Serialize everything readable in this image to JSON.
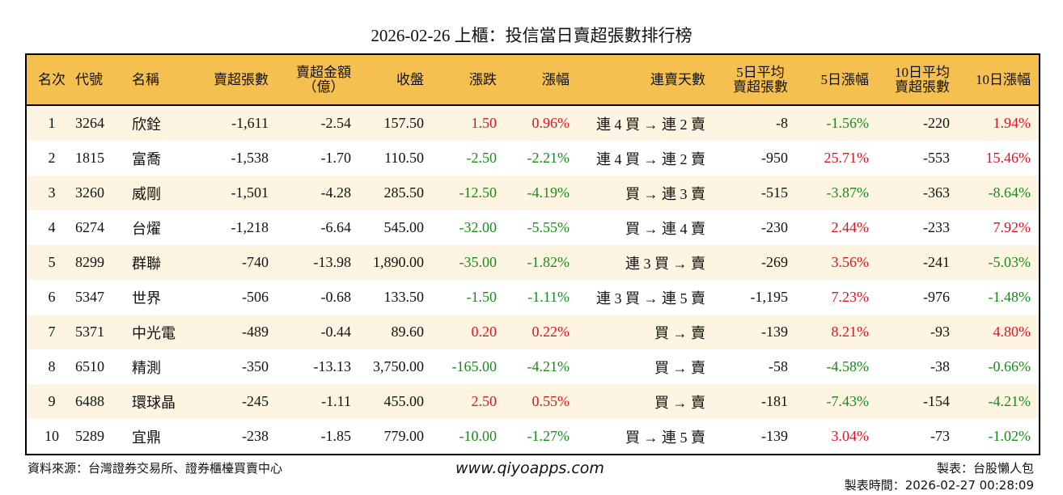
{
  "title": "2026-02-26 上櫃：投信當日賣超張數排行榜",
  "headers": [
    "名次",
    "代號",
    "名稱",
    "賣超張數",
    "賣超金額\n（億）",
    "收盤",
    "漲跌",
    "漲幅",
    "連賣天數",
    "5日平均\n賣超張數",
    "5日漲幅",
    "10日平均\n賣超張數",
    "10日漲幅"
  ],
  "colors": {
    "header_bg": "#f6c050",
    "up": "#e0141e",
    "down": "#1a8a1a",
    "odd_row": "#fdf5e1"
  },
  "rows": [
    [
      "1",
      "3264",
      "欣銓",
      "-1,611",
      "-2.54",
      "157.50",
      "1.50",
      "0.96%",
      "連 4 買 → 連 2 賣",
      "-8",
      "-1.56%",
      "-220",
      "1.94%"
    ],
    [
      "2",
      "1815",
      "富喬",
      "-1,538",
      "-1.70",
      "110.50",
      "-2.50",
      "-2.21%",
      "連 4 買 → 連 2 賣",
      "-950",
      "25.71%",
      "-553",
      "15.46%"
    ],
    [
      "3",
      "3260",
      "威剛",
      "-1,501",
      "-4.28",
      "285.50",
      "-12.50",
      "-4.19%",
      "買 → 連 3 賣",
      "-515",
      "-3.87%",
      "-363",
      "-8.64%"
    ],
    [
      "4",
      "6274",
      "台燿",
      "-1,218",
      "-6.64",
      "545.00",
      "-32.00",
      "-5.55%",
      "買 → 連 4 賣",
      "-230",
      "2.44%",
      "-233",
      "7.92%"
    ],
    [
      "5",
      "8299",
      "群聯",
      "-740",
      "-13.98",
      "1,890.00",
      "-35.00",
      "-1.82%",
      "連 3 買 → 賣",
      "-269",
      "3.56%",
      "-241",
      "-5.03%"
    ],
    [
      "6",
      "5347",
      "世界",
      "-506",
      "-0.68",
      "133.50",
      "-1.50",
      "-1.11%",
      "連 3 買 → 連 5 賣",
      "-1,195",
      "7.23%",
      "-976",
      "-1.48%"
    ],
    [
      "7",
      "5371",
      "中光電",
      "-489",
      "-0.44",
      "89.60",
      "0.20",
      "0.22%",
      "買 → 賣",
      "-139",
      "8.21%",
      "-93",
      "4.80%"
    ],
    [
      "8",
      "6510",
      "精測",
      "-350",
      "-13.13",
      "3,750.00",
      "-165.00",
      "-4.21%",
      "買 → 賣",
      "-58",
      "-4.58%",
      "-38",
      "-0.66%"
    ],
    [
      "9",
      "6488",
      "環球晶",
      "-245",
      "-1.11",
      "455.00",
      "2.50",
      "0.55%",
      "買 → 賣",
      "-181",
      "-7.43%",
      "-154",
      "-4.21%"
    ],
    [
      "10",
      "5289",
      "宜鼎",
      "-238",
      "-1.85",
      "779.00",
      "-10.00",
      "-1.27%",
      "買 → 連 5 賣",
      "-139",
      "3.04%",
      "-73",
      "-1.02%"
    ]
  ],
  "footer": {
    "source": "資料來源：台灣證券交易所、證券櫃檯買賣中心",
    "site": "www.qiyoapps.com",
    "maker": "製表：台股懶人包",
    "time": "製表時間：2026-02-27 00:28:09"
  }
}
